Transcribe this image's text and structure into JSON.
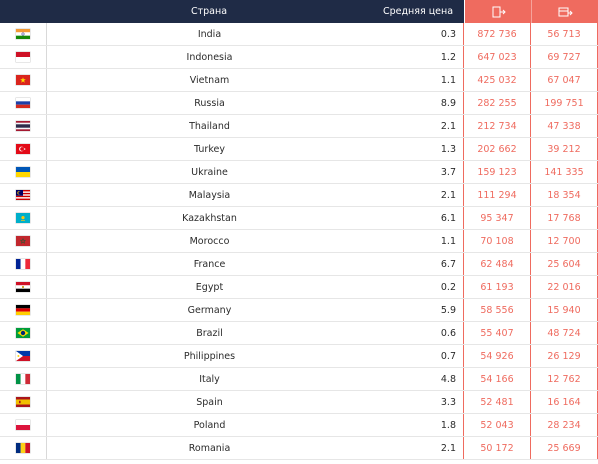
{
  "header": {
    "country_label": "Страна",
    "price_label": "Средняя цена",
    "col_a_icon": "bookmark-arrow-icon",
    "col_b_icon": "card-arrow-icon"
  },
  "rows": [
    {
      "country": "India",
      "price": "0.3",
      "a": "872 736",
      "b": "56 713",
      "flag_icon": "india-flag-icon"
    },
    {
      "country": "Indonesia",
      "price": "1.2",
      "a": "647 023",
      "b": "69 727",
      "flag_icon": "indonesia-flag-icon"
    },
    {
      "country": "Vietnam",
      "price": "1.1",
      "a": "425 032",
      "b": "67 047",
      "flag_icon": "vietnam-flag-icon"
    },
    {
      "country": "Russia",
      "price": "8.9",
      "a": "282 255",
      "b": "199 751",
      "flag_icon": "russia-flag-icon"
    },
    {
      "country": "Thailand",
      "price": "2.1",
      "a": "212 734",
      "b": "47 338",
      "flag_icon": "thailand-flag-icon"
    },
    {
      "country": "Turkey",
      "price": "1.3",
      "a": "202 662",
      "b": "39 212",
      "flag_icon": "turkey-flag-icon"
    },
    {
      "country": "Ukraine",
      "price": "3.7",
      "a": "159 123",
      "b": "141 335",
      "flag_icon": "ukraine-flag-icon"
    },
    {
      "country": "Malaysia",
      "price": "2.1",
      "a": "111 294",
      "b": "18 354",
      "flag_icon": "malaysia-flag-icon"
    },
    {
      "country": "Kazakhstan",
      "price": "6.1",
      "a": "95 347",
      "b": "17 768",
      "flag_icon": "kazakhstan-flag-icon"
    },
    {
      "country": "Morocco",
      "price": "1.1",
      "a": "70 108",
      "b": "12 700",
      "flag_icon": "morocco-flag-icon"
    },
    {
      "country": "France",
      "price": "6.7",
      "a": "62 484",
      "b": "25 604",
      "flag_icon": "france-flag-icon"
    },
    {
      "country": "Egypt",
      "price": "0.2",
      "a": "61 193",
      "b": "22 016",
      "flag_icon": "egypt-flag-icon"
    },
    {
      "country": "Germany",
      "price": "5.9",
      "a": "58 556",
      "b": "15 940",
      "flag_icon": "germany-flag-icon"
    },
    {
      "country": "Brazil",
      "price": "0.6",
      "a": "55 407",
      "b": "48 724",
      "flag_icon": "brazil-flag-icon"
    },
    {
      "country": "Philippines",
      "price": "0.7",
      "a": "54 926",
      "b": "26 129",
      "flag_icon": "philippines-flag-icon"
    },
    {
      "country": "Italy",
      "price": "4.8",
      "a": "54 166",
      "b": "12 762",
      "flag_icon": "italy-flag-icon"
    },
    {
      "country": "Spain",
      "price": "3.3",
      "a": "52 481",
      "b": "16 164",
      "flag_icon": "spain-flag-icon"
    },
    {
      "country": "Poland",
      "price": "1.8",
      "a": "52 043",
      "b": "28 234",
      "flag_icon": "poland-flag-icon"
    },
    {
      "country": "Romania",
      "price": "2.1",
      "a": "50 172",
      "b": "25 669",
      "flag_icon": "romania-flag-icon"
    }
  ],
  "colors": {
    "header_bg": "#1f2b46",
    "accent": "#ef6b5f",
    "text": "#2b2b2b"
  }
}
